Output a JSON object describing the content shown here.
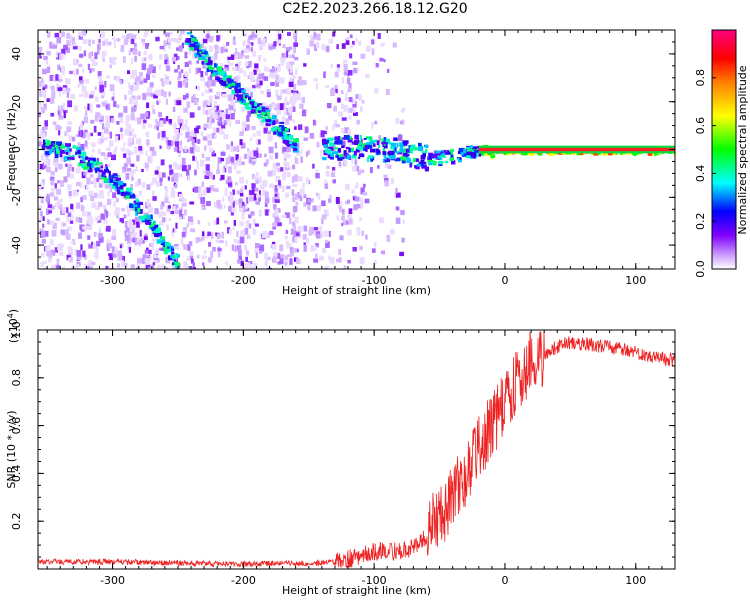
{
  "title": "C2E2.2023.266.18.12.G20",
  "chart_data": [
    {
      "type": "heatmap",
      "xlabel": "Height of straight line (km)",
      "ylabel": "Frequency (Hz)",
      "xlim": [
        -357,
        130
      ],
      "ylim": [
        -50,
        50
      ],
      "xticks": [
        -300,
        -200,
        -100,
        0,
        100
      ],
      "yticks": [
        -40,
        -20,
        0,
        20,
        40
      ],
      "colorbar": {
        "label": "Normalized spectral amplitude",
        "range": [
          0,
          1
        ],
        "ticks": [
          "0.0",
          "0.2",
          "0.4",
          "0.6",
          "0.8"
        ]
      },
      "features": [
        {
          "name": "",
          "x": [
            -355,
            -330,
            -300,
            -275,
            -250
          ],
          "y": [
            2,
            -1,
            -12,
            -28,
            -48
          ]
        },
        {
          "name": "",
          "x": [
            -245,
            -225,
            -200,
            -175,
            -160
          ],
          "y": [
            48,
            35,
            22,
            10,
            2
          ]
        },
        {
          "name": "",
          "x": [
            -140,
            -120,
            -100,
            -80,
            -60,
            -40,
            -20,
            0,
            130
          ],
          "y": [
            1,
            2,
            1,
            0,
            -3,
            -2,
            0,
            0,
            0
          ]
        }
      ],
      "colors": [
        "#ffffff",
        "#8000ff",
        "#0000ff",
        "#00ffff",
        "#00ff00",
        "#ffff00",
        "#ff0000",
        "#ff00ff"
      ]
    },
    {
      "type": "line",
      "xlabel": "Height of straight line (km)",
      "ylabel": "SNR (10 * v/v)",
      "multiplier": "(x10",
      "multiplier_exp": "4",
      "multiplier_close": ")",
      "xlim": [
        -357,
        130
      ],
      "ylim": [
        0,
        1.0
      ],
      "xticks": [
        -300,
        -200,
        -100,
        0,
        100
      ],
      "yticks": [
        0.2,
        0.4,
        0.6,
        0.8,
        1.0
      ],
      "color": "#ee2222",
      "series": [
        {
          "name": "",
          "x": [
            -357,
            -300,
            -200,
            -140,
            -120,
            -110,
            -100,
            -90,
            -80,
            -70,
            -60,
            -50,
            -40,
            -30,
            -20,
            -10,
            0,
            10,
            20,
            30,
            40,
            50,
            60,
            80,
            100,
            130
          ],
          "y": [
            0.03,
            0.03,
            0.02,
            0.025,
            0.04,
            0.06,
            0.07,
            0.08,
            0.07,
            0.09,
            0.14,
            0.22,
            0.3,
            0.4,
            0.5,
            0.6,
            0.7,
            0.79,
            0.86,
            0.9,
            0.93,
            0.95,
            0.94,
            0.93,
            0.91,
            0.87
          ]
        }
      ]
    }
  ]
}
